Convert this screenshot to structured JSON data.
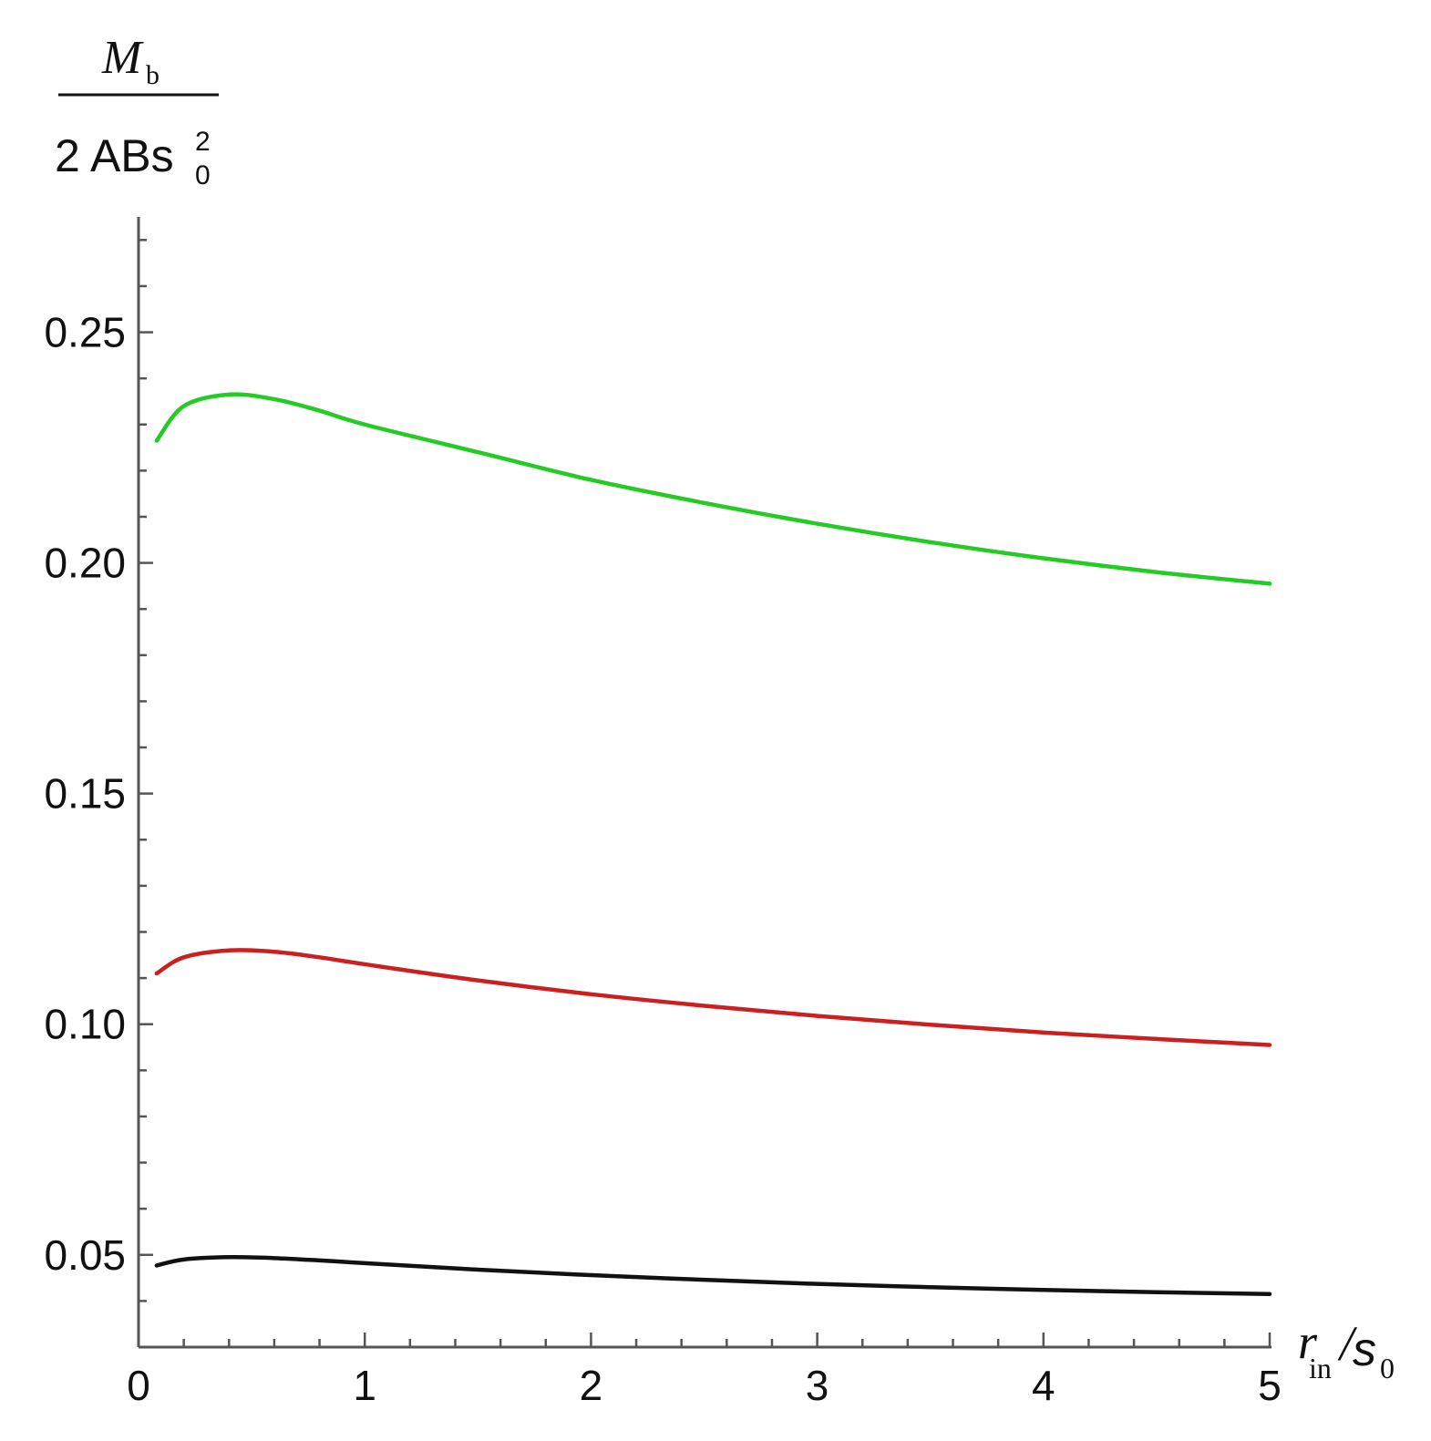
{
  "chart_data": {
    "type": "line",
    "xlim": [
      0,
      5
    ],
    "ylim": [
      0.03,
      0.275
    ],
    "x_ticks": [
      "0",
      "1",
      "2",
      "3",
      "4",
      "5"
    ],
    "y_ticks": [
      "0.05",
      "0.10",
      "0.15",
      "0.20",
      "0.25"
    ],
    "grid": false,
    "ylabel": {
      "numerator": "M",
      "numerator_sub": "b",
      "denominator": "2 ABs",
      "denominator_sub": "0",
      "denominator_sup": "2"
    },
    "xlabel": {
      "main": "r",
      "main_sub": "in",
      "slash": "/",
      "second": "s",
      "second_sub": "0"
    },
    "series": [
      {
        "color": "#22cc22",
        "x": [
          0.08,
          0.2,
          0.4,
          0.6,
          0.8,
          1.0,
          1.5,
          2.0,
          2.5,
          3.0,
          3.5,
          4.0,
          4.5,
          5.0
        ],
        "y": [
          0.2265,
          0.234,
          0.2365,
          0.2355,
          0.233,
          0.23,
          0.224,
          0.218,
          0.213,
          0.2085,
          0.2045,
          0.201,
          0.198,
          0.1955
        ]
      },
      {
        "color": "#cc1f1f",
        "x": [
          0.08,
          0.2,
          0.4,
          0.6,
          0.8,
          1.0,
          1.5,
          2.0,
          2.5,
          3.0,
          3.5,
          4.0,
          4.5,
          5.0
        ],
        "y": [
          0.111,
          0.1145,
          0.116,
          0.1157,
          0.1145,
          0.113,
          0.1095,
          0.1065,
          0.104,
          0.1018,
          0.0999,
          0.0982,
          0.0968,
          0.0955
        ]
      },
      {
        "color": "#111111",
        "x": [
          0.08,
          0.2,
          0.4,
          0.6,
          0.8,
          1.0,
          1.5,
          2.0,
          2.5,
          3.0,
          3.5,
          4.0,
          4.5,
          5.0
        ],
        "y": [
          0.0477,
          0.049,
          0.0495,
          0.0493,
          0.0488,
          0.0482,
          0.0468,
          0.0456,
          0.0446,
          0.0437,
          0.043,
          0.0424,
          0.0419,
          0.0415
        ]
      }
    ]
  }
}
